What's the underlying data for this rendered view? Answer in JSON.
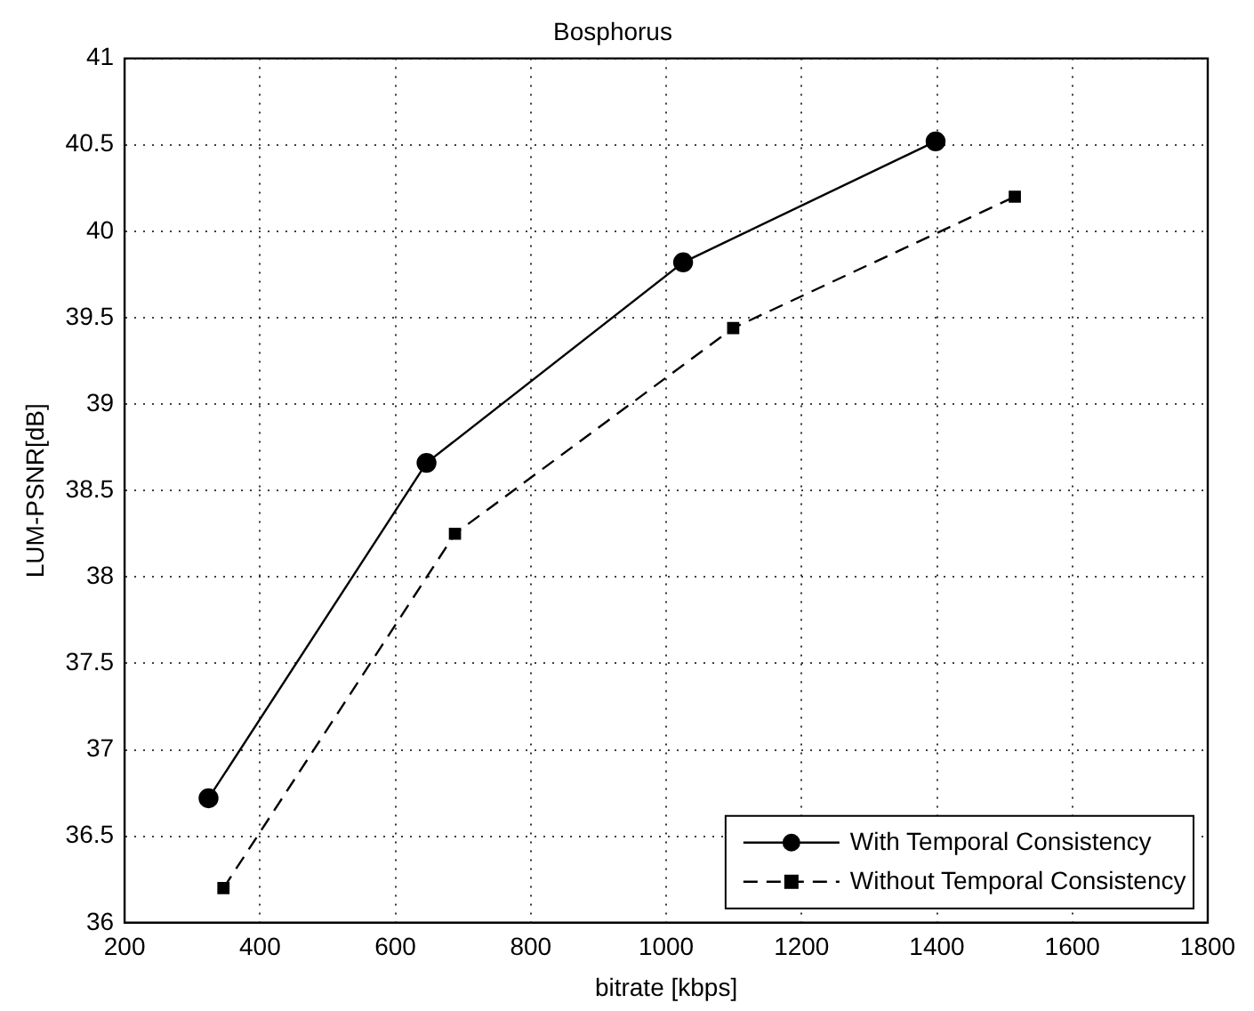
{
  "chart_data": {
    "type": "line",
    "title": "Bosphorus",
    "xlabel": "bitrate [kbps]",
    "ylabel": "LUM-PSNR[dB]",
    "xlim": [
      200,
      1800
    ],
    "xticks": [
      200,
      400,
      600,
      800,
      1000,
      1200,
      1400,
      1600,
      1800
    ],
    "ylim": [
      36,
      41
    ],
    "yticks": [
      36,
      36.5,
      37,
      37.5,
      38,
      38.5,
      39,
      39.5,
      40,
      40.5,
      41
    ],
    "grid": true,
    "legend": "bottom right",
    "series": [
      {
        "name": "With Temporal Consistency",
        "color": "#000000",
        "marker": "circle",
        "line_style": "solid",
        "x": [
          324,
          646,
          1025,
          1398
        ],
        "values": [
          36.72,
          38.66,
          39.82,
          40.52
        ]
      },
      {
        "name": "Without Temporal Consistency",
        "color": "#000000",
        "marker": "square",
        "line_style": "dashed",
        "x": [
          346,
          688,
          1099,
          1515
        ],
        "values": [
          36.2,
          38.25,
          39.44,
          40.2
        ]
      }
    ]
  }
}
